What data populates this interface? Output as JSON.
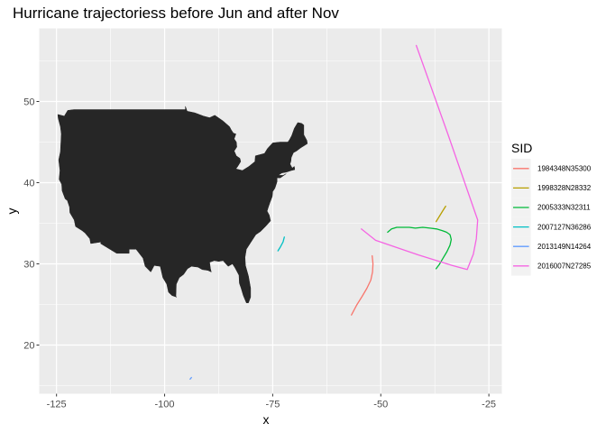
{
  "chart_data": {
    "type": "line",
    "title": "Hurricane trajectoriess before Jun and after Nov",
    "xlabel": "x",
    "ylabel": "y",
    "xlim": [
      -129,
      -22
    ],
    "ylim": [
      14,
      59
    ],
    "x_ticks": [
      -125,
      -100,
      -75,
      -50,
      -25
    ],
    "x_tick_labels": [
      "-125",
      "-100",
      "-75",
      "-50",
      "-25"
    ],
    "y_ticks": [
      20,
      30,
      40,
      50
    ],
    "y_tick_labels": [
      "20",
      "30",
      "40",
      "50"
    ],
    "grid": true,
    "background": "#ebebeb",
    "basemap": "contiguous United States, filled dark grey",
    "basemap_color": "#262626",
    "legend": {
      "title": "SID",
      "position": "right"
    },
    "series": [
      {
        "name": "1984348N35300",
        "color": "#F8766D",
        "x": [
          -56.8,
          -55.6,
          -54.3,
          -53.2,
          -52.3,
          -51.9,
          -51.8,
          -52.0
        ],
        "y": [
          23.7,
          24.9,
          26.0,
          27.0,
          28.0,
          29.0,
          30.0,
          31.0
        ]
      },
      {
        "name": "1998328N28332",
        "color": "#B79F00",
        "x": [
          -37.2,
          -36.4,
          -35.7,
          -35.0
        ],
        "y": [
          35.2,
          35.9,
          36.5,
          37.1
        ]
      },
      {
        "name": "2005333N32311",
        "color": "#00BA38",
        "x": [
          -48.4,
          -47.5,
          -46.3,
          -44.8,
          -43.4,
          -42.0,
          -40.3,
          -38.6,
          -37.1,
          -35.8,
          -34.8,
          -34.0,
          -33.7,
          -34.0,
          -34.7,
          -35.6,
          -36.5,
          -37.2
        ],
        "y": [
          33.9,
          34.3,
          34.5,
          34.5,
          34.5,
          34.4,
          34.5,
          34.4,
          34.3,
          34.1,
          33.9,
          33.6,
          33.0,
          32.3,
          31.5,
          30.7,
          29.9,
          29.4
        ]
      },
      {
        "name": "2007127N36286",
        "color": "#00BFC4",
        "x": [
          -73.8,
          -73.2,
          -72.6,
          -72.3
        ],
        "y": [
          31.6,
          32.1,
          32.7,
          33.3
        ]
      },
      {
        "name": "2013149N14264",
        "color": "#619CFF",
        "x": [
          -94.1,
          -93.8
        ],
        "y": [
          15.8,
          16.0
        ]
      },
      {
        "name": "2016007N27285",
        "color": "#F564E3",
        "x": [
          -54.5,
          -51.2,
          -41.3,
          -33.5,
          -30.0,
          -28.6,
          -27.9,
          -27.6,
          -34.5,
          -41.8
        ],
        "y": [
          34.3,
          32.9,
          31.1,
          29.8,
          29.3,
          31.2,
          33.1,
          35.4,
          46.0,
          56.9
        ]
      }
    ]
  }
}
